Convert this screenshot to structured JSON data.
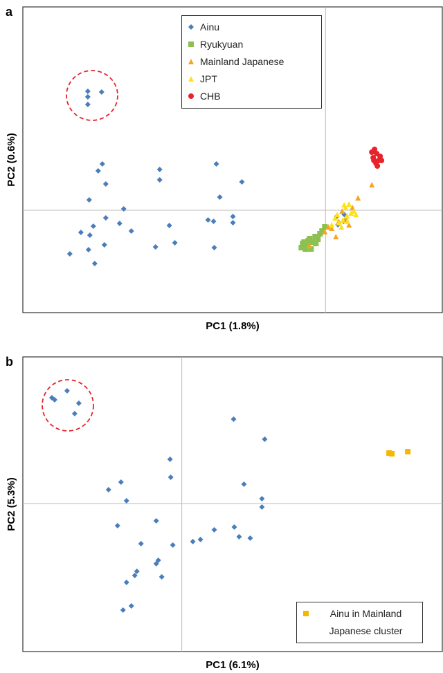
{
  "chart_data": [
    {
      "type": "scatter",
      "panel": "a",
      "xlabel": "PC1 (1.8%)",
      "ylabel": "PC2 (0.6%)",
      "xlim": [
        -438,
        169
      ],
      "ylim": [
        -148,
        294
      ],
      "zero_lines": true,
      "legend": "top-center",
      "series": [
        {
          "name": "Ainu",
          "color": "#4a7ebb",
          "marker": "diamond",
          "x": [
            -344,
            -344,
            -344,
            -324,
            -323,
            -329,
            -318,
            -342,
            -292,
            -318,
            -336,
            -354,
            -298,
            -281,
            -341,
            -320,
            -343,
            -370,
            -334,
            -240,
            -240,
            -226,
            -246,
            -218,
            -158,
            -121,
            -153,
            -134,
            -134,
            -170,
            -162,
            -161,
            16,
            27,
            26,
            18
          ],
          "y": [
            172,
            164,
            153,
            171,
            67,
            57,
            38,
            15,
            2,
            -11,
            -23,
            -32,
            -19,
            -30,
            -36,
            -50,
            -57,
            -63,
            -77,
            59,
            44,
            -22,
            -53,
            -47,
            67,
            41,
            19,
            -9,
            -18,
            -14,
            -16,
            -54,
            -9,
            -6,
            -16,
            -21
          ]
        },
        {
          "name": "Ryukyuan",
          "color": "#8cc152",
          "marker": "square",
          "x": [
            -35,
            -31,
            -26,
            -23,
            -19,
            -15,
            -11,
            -8,
            -29,
            -21,
            -33,
            -14,
            -5,
            -1,
            -25
          ],
          "y": [
            -54,
            -46,
            -51,
            -41,
            -46,
            -38,
            -42,
            -34,
            -56,
            -56,
            -48,
            -48,
            -30,
            -24,
            -44
          ]
        },
        {
          "name": "Mainland Japanese",
          "color": "#f5a623",
          "marker": "triangle",
          "x": [
            47,
            15,
            4,
            19,
            29,
            34,
            9,
            24,
            39,
            -1,
            -23,
            67
          ],
          "y": [
            18,
            -38,
            -24,
            -16,
            -11,
            -21,
            -26,
            -1,
            4,
            -31,
            -51,
            37
          ]
        },
        {
          "name": "JPT",
          "color": "#ffe11a",
          "marker": "triangle",
          "x": [
            29,
            34,
            37,
            25,
            19,
            14,
            31,
            41,
            23,
            27,
            9,
            44,
            17,
            32
          ],
          "y": [
            4,
            9,
            -4,
            -14,
            -18,
            -11,
            -8,
            -1,
            -24,
            8,
            -21,
            -6,
            -6,
            -16
          ]
        },
        {
          "name": "CHB",
          "color": "#e8232b",
          "marker": "circle",
          "x": [
            71,
            74,
            69,
            77,
            73,
            79,
            67,
            75,
            81,
            70
          ],
          "y": [
            88,
            82,
            76,
            72,
            68,
            78,
            84,
            64,
            72,
            72
          ]
        }
      ]
    },
    {
      "type": "scatter",
      "panel": "b",
      "xlabel": "PC1 (6.1%)",
      "ylabel": "PC2 (5.3%)",
      "xlim": [
        -230,
        377
      ],
      "ylim": [
        -214,
        212
      ],
      "zero_lines": true,
      "legend": "bottom-right",
      "series": [
        {
          "name": null,
          "color": "#4a7ebb",
          "marker": "diamond",
          "x": [
            -188,
            -184,
            -166,
            -149,
            -155,
            75,
            120,
            -17,
            -16,
            -88,
            -106,
            -80,
            90,
            116,
            116,
            -37,
            -93,
            76,
            47,
            83,
            99,
            27,
            16,
            -13,
            -59,
            -34,
            -37,
            -65,
            -68,
            -29,
            -80,
            -73,
            -85
          ],
          "y": [
            153,
            150,
            163,
            145,
            130,
            122,
            93,
            64,
            38,
            31,
            20,
            4,
            28,
            7,
            -5,
            -25,
            -32,
            -34,
            -38,
            -48,
            -50,
            -52,
            -55,
            -60,
            -58,
            -82,
            -87,
            -98,
            -104,
            -106,
            -114,
            -148,
            -154
          ]
        },
        {
          "name": "Ainu in Mainland Japanese cluster",
          "color": "#f5b800",
          "marker": "square",
          "x": [
            300,
            304,
            327
          ],
          "y": [
            73,
            72,
            75
          ]
        }
      ]
    }
  ]
}
